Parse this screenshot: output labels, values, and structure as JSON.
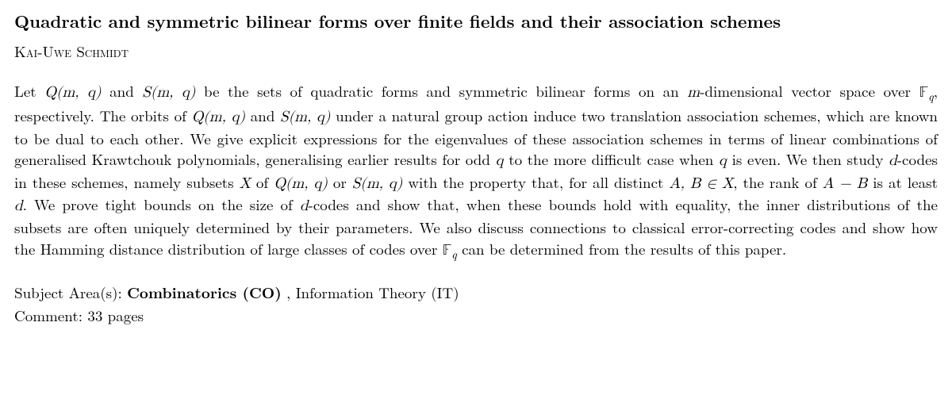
{
  "title": "Quadratic and symmetric bilinear forms over finite fields and their association schemes",
  "author": "Kai-Uwe Schmidt",
  "abstract_parts": {
    "p1": "Let ",
    "p2": " and ",
    "p3": " be the sets of quadratic forms and symmetric bilinear forms on an ",
    "p4": "-dimensional vector space over ",
    "p5": ", respectively. The orbits of ",
    "p6": " and ",
    "p7": " under a natural group action induce two translation association schemes, which are known to be dual to each other. We give explicit expressions for the eigenvalues of these association schemes in terms of linear combinations of generalised Krawtchouk polynomials, generalising earlier results for odd ",
    "p8": " to the more difficult case when ",
    "p9": " is even. We then study ",
    "p10": "-codes in these schemes, namely subsets ",
    "p11": " of ",
    "p12": " or ",
    "p13": " with the property that, for all distinct ",
    "p14": ", the rank of ",
    "p15": " is at least ",
    "p16": ". We prove tight bounds on the size of ",
    "p17": "-codes and show that, when these bounds hold with equality, the inner distributions of the subsets are often uniquely determined by their parameters. We also discuss connections to classical error-correcting codes and show how the Hamming distance distribution of large classes of codes over ",
    "p18": " can be determined from the results of this paper."
  },
  "math": {
    "Qmq": "Q(m, q)",
    "Smq": "S(m, q)",
    "m": "m",
    "Fq": "𝔽",
    "q": "q",
    "d": "d",
    "X": "X",
    "ABinX": "A, B ∈ X",
    "AminusB": "A − B"
  },
  "subject_label": "Subject Area(s): ",
  "subject_primary": "Combinatorics (CO)",
  "subject_sep": " , ",
  "subject_secondary": "Information Theory (IT)",
  "comment_label": "Comment: ",
  "comment_value": "33 pages"
}
